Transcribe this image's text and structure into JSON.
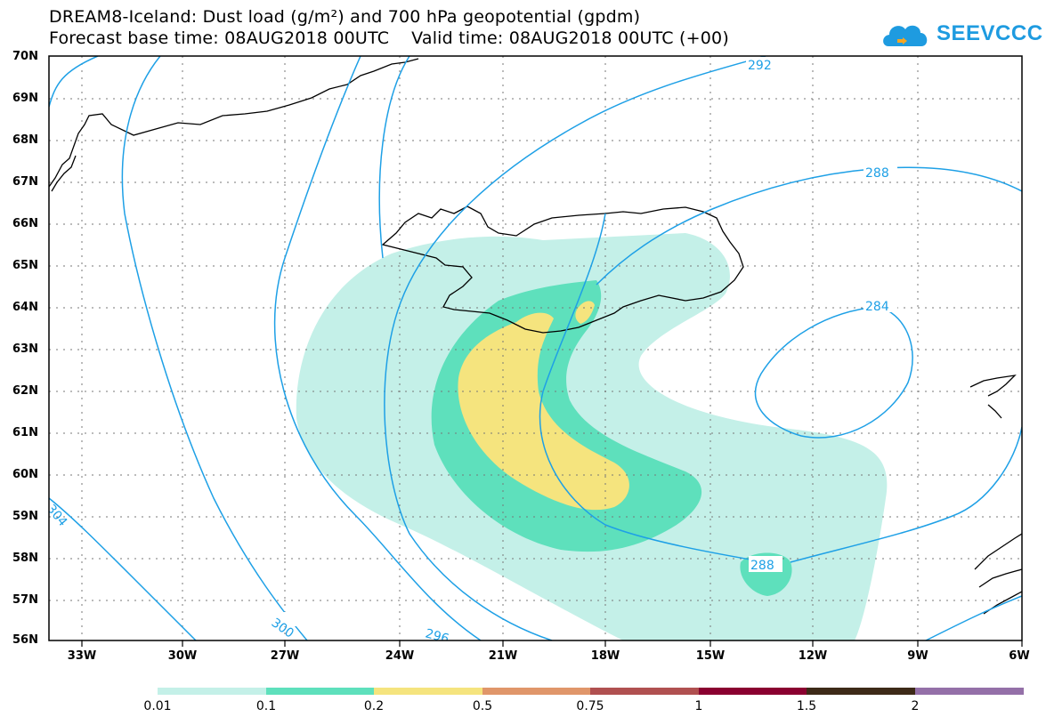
{
  "header": {
    "title_line1": "DREAM8-Iceland: Dust load (g/m²) and 700 hPa geopotential (gpdm)",
    "title_line2": "Forecast base time: 08AUG2018 00UTC    Valid time: 08AUG2018 00UTC (+00)"
  },
  "logo": {
    "text": "SEEVCCC",
    "icon": "cloud-logo-icon",
    "color": "#1e9be0"
  },
  "map": {
    "lat_labels": [
      "70N",
      "69N",
      "68N",
      "67N",
      "66N",
      "65N",
      "64N",
      "63N",
      "62N",
      "61N",
      "60N",
      "59N",
      "58N",
      "57N",
      "56N"
    ],
    "lon_labels": [
      "33W",
      "30W",
      "27W",
      "24W",
      "21W",
      "18W",
      "15W",
      "12W",
      "9W",
      "6W"
    ],
    "contour_labels": [
      "292",
      "288",
      "284",
      "288",
      "300",
      "296",
      "304"
    ],
    "contour_color": "#1ea0e6",
    "dust_colors": [
      "#c4f0e8",
      "#5ee0bc",
      "#f5e47e"
    ]
  },
  "legend": {
    "colors": [
      "#c4f0e8",
      "#5ee0bc",
      "#f5e47e",
      "#e0966a",
      "#b05050",
      "#8a0030",
      "#3d2a18",
      "#9470a8"
    ],
    "labels": [
      "0.01",
      "0.1",
      "0.2",
      "0.5",
      "0.75",
      "1",
      "1.5",
      "2"
    ]
  }
}
